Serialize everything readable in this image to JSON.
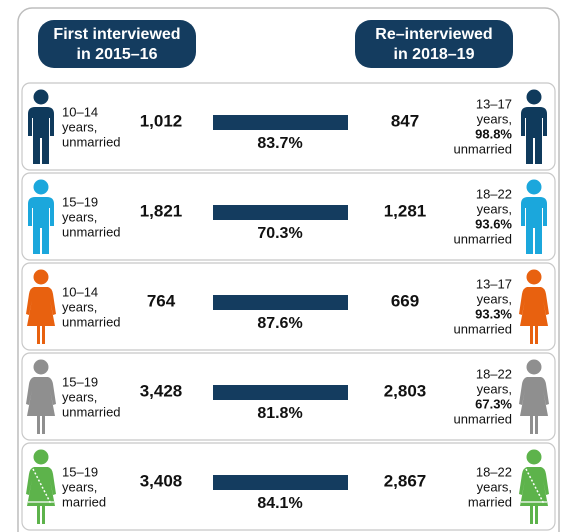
{
  "header": {
    "left_label": [
      "First interviewed",
      "in 2015–16"
    ],
    "right_label": [
      "Re–interviewed",
      "in 2018–19"
    ]
  },
  "rows": [
    {
      "left_lines": [
        "10–14",
        "years,",
        "unmarried"
      ],
      "left_count": "1,012",
      "percent": "83.7%",
      "right_count": "847",
      "right_lines": [
        "13–17",
        "years,",
        "98.8%",
        "unmarried"
      ]
    },
    {
      "left_lines": [
        "15–19",
        "years,",
        "unmarried"
      ],
      "left_count": "1,821",
      "percent": "70.3%",
      "right_count": "1,281",
      "right_lines": [
        "18–22",
        "years,",
        "93.6%",
        "unmarried"
      ]
    },
    {
      "left_lines": [
        "10–14",
        "years,",
        "unmarried"
      ],
      "left_count": "764",
      "percent": "87.6%",
      "right_count": "669",
      "right_lines": [
        "13–17",
        "years,",
        "93.3%",
        "unmarried"
      ]
    },
    {
      "left_lines": [
        "15–19",
        "years,",
        "unmarried"
      ],
      "left_count": "3,428",
      "percent": "81.8%",
      "right_count": "2,803",
      "right_lines": [
        "18–22",
        "years,",
        "67.3%",
        "unmarried"
      ]
    },
    {
      "left_lines": [
        "15–19",
        "years,",
        "married"
      ],
      "left_count": "3,408",
      "percent": "84.1%",
      "right_count": "2,867",
      "right_lines": [
        "18–22",
        "years,",
        "married"
      ]
    }
  ]
}
